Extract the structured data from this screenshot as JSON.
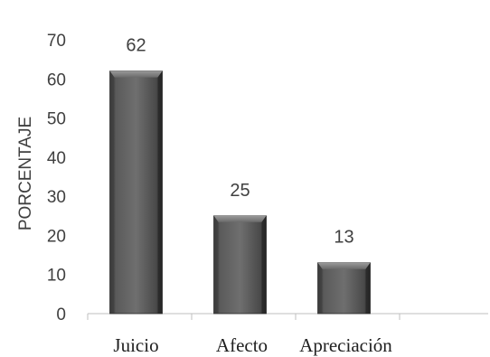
{
  "chart_data": {
    "type": "bar",
    "title": "",
    "xlabel": "",
    "ylabel": "PORCENTAJE",
    "categories": [
      "Juicio",
      "Afecto",
      "Apreciación"
    ],
    "values": [
      62,
      25,
      13
    ],
    "ylim": [
      0,
      70
    ],
    "yticks": [
      0,
      10,
      20,
      30,
      40,
      50,
      60,
      70
    ],
    "grid": false,
    "legend": "none",
    "data_labels": true,
    "bar_style": "3d-beveled",
    "colors": {
      "bar_dark": "#2b2b2b",
      "bar_mid": "#6e6e6e",
      "bar_light": "#9a9a9a",
      "axis": "#bfbfbf",
      "text": "#404040"
    }
  }
}
